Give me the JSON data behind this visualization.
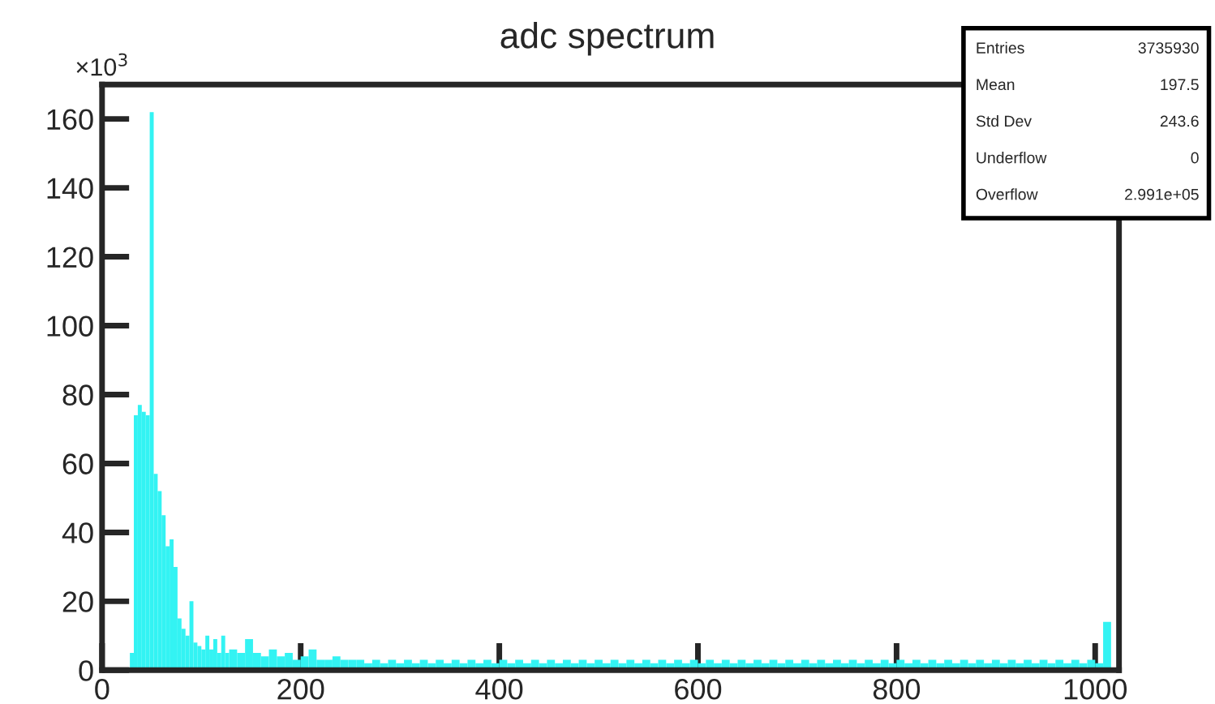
{
  "chart_data": {
    "type": "histogram",
    "title": "adc spectrum",
    "color": "#33f3f3",
    "bins": [
      28,
      32,
      36,
      40,
      44,
      48,
      52,
      56,
      60,
      64,
      68,
      72,
      76,
      80,
      84,
      88,
      92,
      96,
      100,
      104,
      108,
      112,
      116,
      120,
      124,
      128,
      136,
      144,
      152,
      160,
      168,
      176,
      184,
      192,
      200,
      208,
      216,
      224,
      232,
      240,
      248,
      256,
      264,
      272,
      280,
      288,
      296,
      304,
      312,
      320,
      328,
      336,
      344,
      352,
      360,
      368,
      376,
      384,
      392,
      400,
      408,
      416,
      424,
      432,
      440,
      448,
      456,
      464,
      472,
      480,
      488,
      496,
      504,
      512,
      520,
      528,
      536,
      544,
      552,
      560,
      568,
      576,
      584,
      592,
      600,
      608,
      616,
      624,
      632,
      640,
      648,
      656,
      664,
      672,
      680,
      688,
      696,
      704,
      712,
      720,
      728,
      736,
      744,
      752,
      760,
      768,
      776,
      784,
      792,
      800,
      808,
      816,
      824,
      832,
      840,
      848,
      856,
      864,
      872,
      880,
      888,
      896,
      904,
      912,
      920,
      928,
      936,
      944,
      952,
      960,
      968,
      976,
      984,
      992,
      1000,
      1008,
      1016
    ],
    "values": [
      5,
      74,
      77,
      75,
      74,
      162,
      57,
      52,
      45,
      36,
      38,
      30,
      15,
      12,
      10,
      20,
      8,
      7,
      6,
      10,
      6,
      9,
      5,
      10,
      5,
      6,
      5,
      9,
      5,
      4,
      6,
      4,
      5,
      3,
      4,
      6,
      3,
      3,
      4,
      3,
      3,
      3,
      2,
      3,
      2,
      3,
      2,
      3,
      2,
      3,
      2,
      3,
      2,
      3,
      2,
      3,
      2,
      3,
      2,
      3,
      2,
      3,
      2,
      3,
      2,
      3,
      2,
      3,
      2,
      3,
      2,
      3,
      2,
      3,
      2,
      3,
      2,
      3,
      2,
      3,
      2,
      3,
      2,
      3,
      2,
      3,
      2,
      3,
      2,
      3,
      2,
      3,
      2,
      3,
      2,
      3,
      2,
      3,
      2,
      3,
      2,
      3,
      2,
      3,
      2,
      3,
      2,
      3,
      2,
      3,
      2,
      3,
      2,
      3,
      2,
      3,
      2,
      3,
      2,
      3,
      2,
      3,
      2,
      3,
      2,
      3,
      2,
      3,
      2,
      3,
      2,
      3,
      2,
      3,
      2,
      14
    ],
    "xlim": [
      0,
      1024
    ],
    "ylim": [
      0,
      170
    ],
    "xticks": [
      0,
      200,
      400,
      600,
      800,
      1000
    ],
    "yticks": [
      0,
      20,
      40,
      60,
      80,
      100,
      120,
      140,
      160
    ],
    "grid": false,
    "annotations": [
      "×10$^{3}$",
      "Entries",
      "3735930",
      "Mean",
      "197.5",
      "Std Dev",
      "243.6",
      "Underflow",
      "0",
      "Overflow",
      "2.991e+05"
    ]
  }
}
